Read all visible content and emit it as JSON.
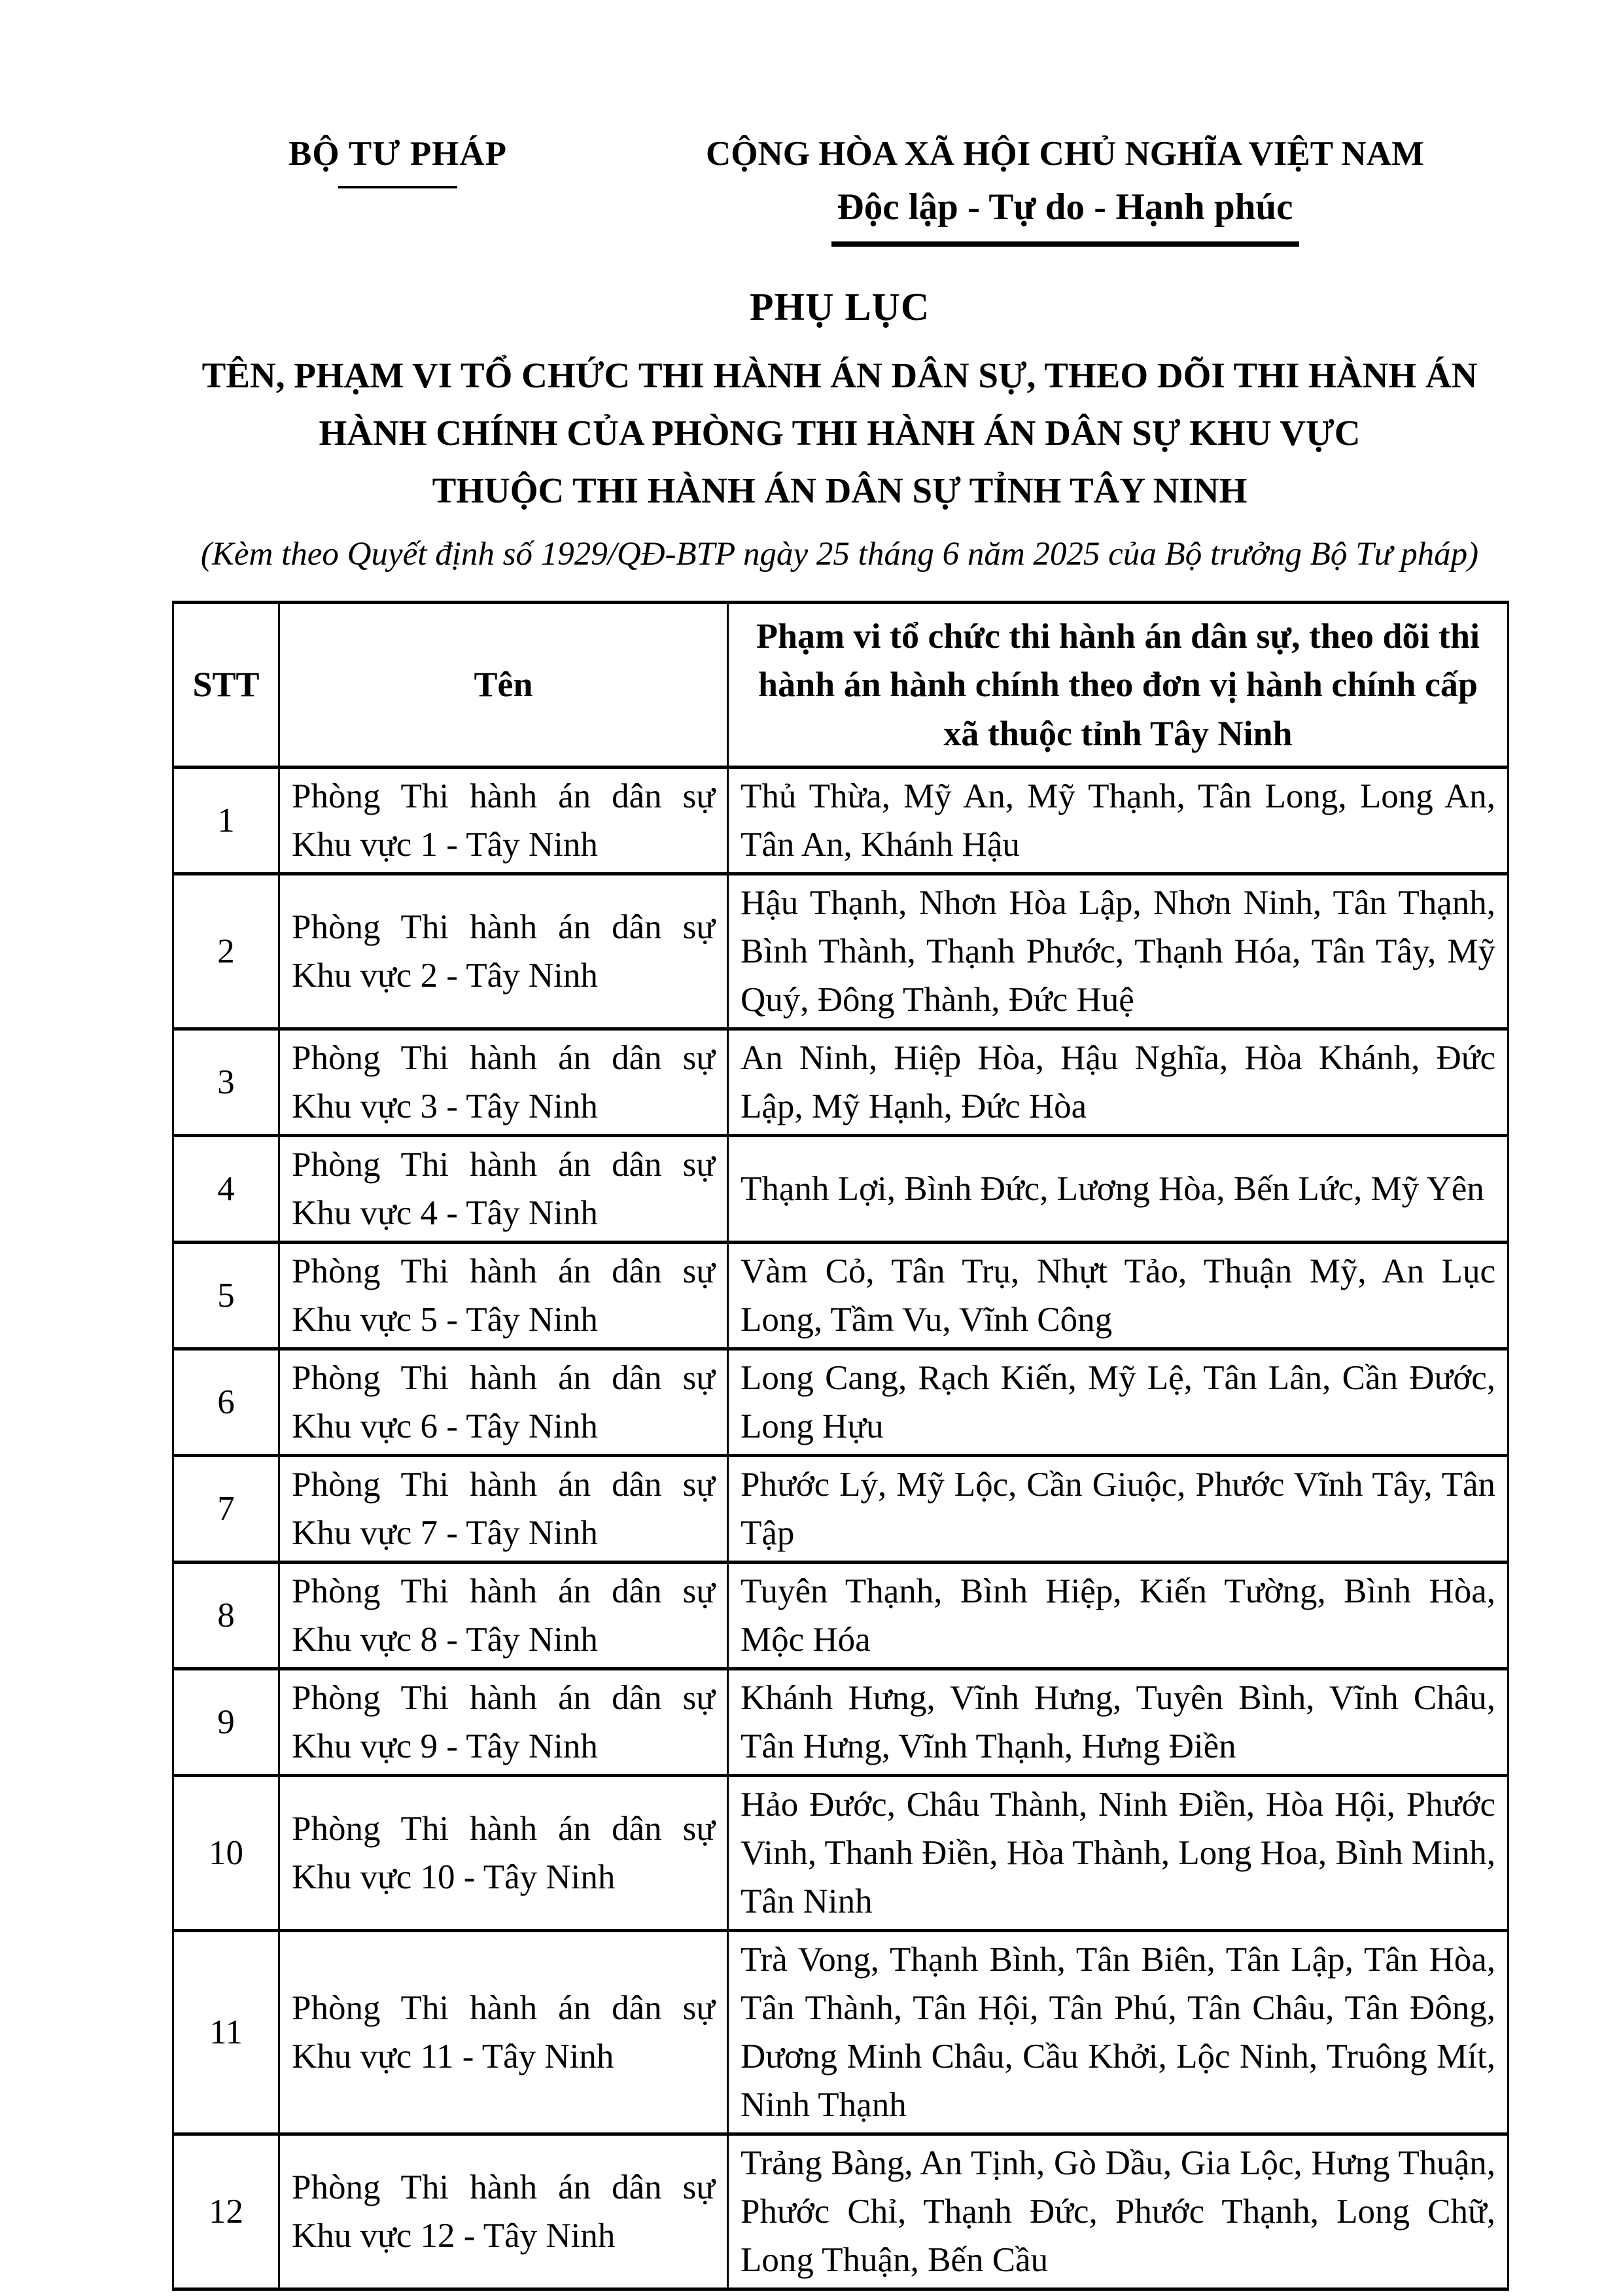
{
  "header": {
    "org_name": "BỘ TƯ PHÁP",
    "national_title": "CỘNG HÒA XÃ HỘI CHỦ NGHĨA VIỆT NAM",
    "national_motto": "Độc lập - Tự do - Hạnh phúc"
  },
  "title": "PHỤ LỤC",
  "subtitle_lines": [
    "TÊN, PHẠM VI TỔ CHỨC THI HÀNH ÁN DÂN SỰ, THEO DÕI THI HÀNH ÁN",
    "HÀNH CHÍNH CỦA PHÒNG THI HÀNH ÁN DÂN SỰ KHU VỰC",
    "THUỘC THI HÀNH ÁN DÂN SỰ TỈNH TÂY NINH"
  ],
  "note": "(Kèm theo Quyết định số 1929/QĐ-BTP ngày 25 tháng 6 năm 2025 của Bộ trưởng Bộ Tư pháp)",
  "table": {
    "headers": [
      "STT",
      "Tên",
      "Phạm vi tổ chức thi hành án dân sự, theo dõi thi hành án hành chính theo đơn vị hành chính cấp xã thuộc tỉnh Tây Ninh"
    ],
    "rows": [
      {
        "stt": "1",
        "ten": "Phòng Thi hành án dân sự Khu vực 1 - Tây Ninh",
        "pham_vi": "Thủ Thừa, Mỹ An, Mỹ Thạnh, Tân Long, Long An, Tân An, Khánh Hậu"
      },
      {
        "stt": "2",
        "ten": "Phòng Thi hành án dân sự Khu vực 2 - Tây Ninh",
        "pham_vi": "Hậu Thạnh, Nhơn Hòa Lập, Nhơn Ninh, Tân Thạnh, Bình Thành, Thạnh Phước, Thạnh Hóa, Tân Tây, Mỹ Quý, Đông Thành, Đức Huệ"
      },
      {
        "stt": "3",
        "ten": "Phòng Thi hành án dân sự Khu vực 3 - Tây Ninh",
        "pham_vi": "An Ninh, Hiệp Hòa, Hậu Nghĩa, Hòa Khánh, Đức Lập, Mỹ Hạnh, Đức Hòa"
      },
      {
        "stt": "4",
        "ten": "Phòng Thi hành án dân sự Khu vực 4 - Tây Ninh",
        "pham_vi": "Thạnh Lợi, Bình Đức, Lương Hòa, Bến Lức, Mỹ Yên"
      },
      {
        "stt": "5",
        "ten": "Phòng Thi hành án dân sự Khu vực 5 - Tây Ninh",
        "pham_vi": "Vàm Cỏ, Tân Trụ, Nhựt Tảo, Thuận Mỹ, An Lục Long, Tầm Vu, Vĩnh Công"
      },
      {
        "stt": "6",
        "ten": "Phòng Thi hành án dân sự Khu vực 6 - Tây Ninh",
        "pham_vi": "Long Cang, Rạch Kiến, Mỹ Lệ, Tân Lân, Cần Đước, Long Hựu"
      },
      {
        "stt": "7",
        "ten": "Phòng Thi hành án dân sự Khu vực 7 - Tây Ninh",
        "pham_vi": "Phước Lý, Mỹ Lộc, Cần Giuộc, Phước Vĩnh Tây, Tân Tập"
      },
      {
        "stt": "8",
        "ten": "Phòng Thi hành án dân sự Khu vực 8 - Tây Ninh",
        "pham_vi": "Tuyên Thạnh, Bình Hiệp, Kiến Tường, Bình Hòa, Mộc Hóa"
      },
      {
        "stt": "9",
        "ten": "Phòng Thi hành án dân sự Khu vực 9 - Tây Ninh",
        "pham_vi": "Khánh Hưng, Vĩnh Hưng, Tuyên Bình, Vĩnh Châu, Tân Hưng, Vĩnh Thạnh, Hưng Điền"
      },
      {
        "stt": "10",
        "ten": "Phòng Thi hành án dân sự Khu vực 10 - Tây Ninh",
        "pham_vi": "Hảo Đước, Châu Thành, Ninh Điền, Hòa Hội, Phước Vinh, Thanh Điền, Hòa Thành, Long Hoa, Bình Minh, Tân Ninh"
      },
      {
        "stt": "11",
        "ten": "Phòng Thi hành án dân sự Khu vực 11 - Tây Ninh",
        "pham_vi": "Trà Vong, Thạnh Bình, Tân Biên, Tân Lập, Tân Hòa, Tân Thành, Tân Hội, Tân Phú, Tân Châu, Tân Đông, Dương Minh Châu, Cầu Khởi, Lộc Ninh, Truông Mít, Ninh Thạnh"
      },
      {
        "stt": "12",
        "ten": "Phòng Thi hành án dân sự Khu vực 12 - Tây Ninh",
        "pham_vi": "Trảng Bàng, An Tịnh, Gò Dầu, Gia Lộc, Hưng Thuận, Phước Chỉ, Thạnh Đức, Phước Thạnh, Long Chữ, Long Thuận, Bến Cầu"
      }
    ]
  }
}
